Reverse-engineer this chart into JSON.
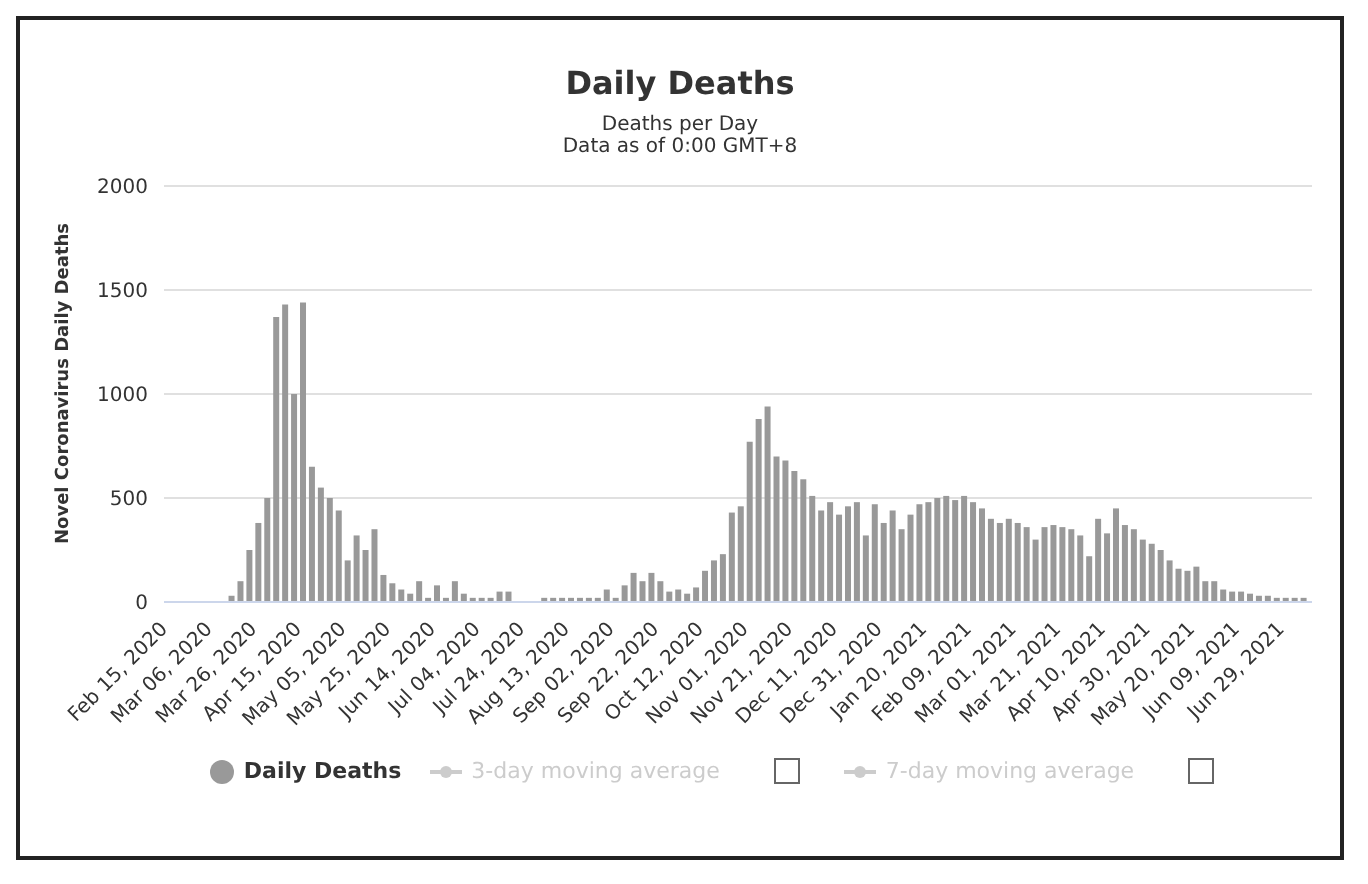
{
  "chart_data": {
    "type": "bar",
    "title": "Daily Deaths",
    "subtitle": "Deaths per Day",
    "annotations": [
      "Data as of 0:00 GMT+8"
    ],
    "ylabel": "Novel Coronavirus Daily Deaths",
    "x": [
      "2020-02-15",
      "2020-02-19",
      "2020-02-23",
      "2020-02-27",
      "2020-03-02",
      "2020-03-06",
      "2020-03-10",
      "2020-03-14",
      "2020-03-18",
      "2020-03-22",
      "2020-03-26",
      "2020-03-30",
      "2020-04-03",
      "2020-04-07",
      "2020-04-11",
      "2020-04-15",
      "2020-04-19",
      "2020-04-23",
      "2020-04-27",
      "2020-05-01",
      "2020-05-05",
      "2020-05-09",
      "2020-05-13",
      "2020-05-17",
      "2020-05-21",
      "2020-05-25",
      "2020-05-29",
      "2020-06-02",
      "2020-06-06",
      "2020-06-10",
      "2020-06-14",
      "2020-06-18",
      "2020-06-22",
      "2020-06-26",
      "2020-06-30",
      "2020-07-04",
      "2020-07-08",
      "2020-07-12",
      "2020-07-16",
      "2020-07-20",
      "2020-07-24",
      "2020-07-28",
      "2020-08-01",
      "2020-08-05",
      "2020-08-09",
      "2020-08-13",
      "2020-08-17",
      "2020-08-21",
      "2020-08-25",
      "2020-08-29",
      "2020-09-02",
      "2020-09-06",
      "2020-09-10",
      "2020-09-14",
      "2020-09-18",
      "2020-09-22",
      "2020-09-26",
      "2020-09-30",
      "2020-10-04",
      "2020-10-08",
      "2020-10-12",
      "2020-10-16",
      "2020-10-20",
      "2020-10-24",
      "2020-10-28",
      "2020-11-01",
      "2020-11-05",
      "2020-11-09",
      "2020-11-13",
      "2020-11-17",
      "2020-11-21",
      "2020-11-25",
      "2020-11-29",
      "2020-12-03",
      "2020-12-07",
      "2020-12-11",
      "2020-12-15",
      "2020-12-19",
      "2020-12-23",
      "2020-12-27",
      "2020-12-31",
      "2021-01-04",
      "2021-01-08",
      "2021-01-12",
      "2021-01-16",
      "2021-01-20",
      "2021-01-24",
      "2021-01-28",
      "2021-02-01",
      "2021-02-05",
      "2021-02-09",
      "2021-02-13",
      "2021-02-17",
      "2021-02-21",
      "2021-02-25",
      "2021-03-01",
      "2021-03-05",
      "2021-03-09",
      "2021-03-13",
      "2021-03-17",
      "2021-03-21",
      "2021-03-25",
      "2021-03-29",
      "2021-04-02",
      "2021-04-06",
      "2021-04-10",
      "2021-04-14",
      "2021-04-18",
      "2021-04-22",
      "2021-04-26",
      "2021-04-30",
      "2021-05-04",
      "2021-05-08",
      "2021-05-12",
      "2021-05-16",
      "2021-05-20",
      "2021-05-24",
      "2021-05-28",
      "2021-06-01",
      "2021-06-05",
      "2021-06-09",
      "2021-06-13",
      "2021-06-17",
      "2021-06-21",
      "2021-06-25",
      "2021-06-29",
      "2021-07-03",
      "2021-07-07"
    ],
    "series": [
      {
        "name": "Daily Deaths",
        "color": "#999999",
        "values": [
          0,
          0,
          0,
          0,
          0,
          0,
          0,
          30,
          100,
          250,
          380,
          500,
          1370,
          1430,
          1000,
          1440,
          650,
          550,
          500,
          440,
          200,
          320,
          250,
          350,
          130,
          90,
          60,
          40,
          100,
          20,
          80,
          20,
          100,
          40,
          20,
          20,
          20,
          50,
          50,
          0,
          0,
          0,
          20,
          20,
          20,
          20,
          20,
          20,
          20,
          60,
          20,
          80,
          140,
          100,
          140,
          100,
          50,
          60,
          40,
          70,
          150,
          200,
          230,
          430,
          460,
          770,
          880,
          940,
          700,
          680,
          630,
          590,
          510,
          440,
          480,
          420,
          460,
          480,
          320,
          470,
          380,
          440,
          350,
          420,
          470,
          480,
          500,
          510,
          490,
          510,
          480,
          450,
          400,
          380,
          400,
          380,
          360,
          300,
          360,
          370,
          360,
          350,
          320,
          220,
          400,
          330,
          450,
          370,
          350,
          300,
          280,
          250,
          200,
          160,
          150,
          170,
          100,
          100,
          60,
          50,
          50,
          40,
          30,
          30,
          20,
          20,
          20,
          20
        ]
      },
      {
        "name": "3-day moving average",
        "type": "line",
        "color": "#cccccc",
        "values": [
          null,
          null,
          null,
          null,
          null,
          null,
          null,
          null,
          null,
          null,
          null,
          null,
          null,
          null,
          null,
          null,
          null,
          null,
          null,
          null,
          null,
          null,
          null,
          null,
          null,
          null,
          null,
          null,
          null,
          null,
          null,
          null,
          null,
          null,
          null,
          null,
          null,
          null,
          null,
          null,
          null,
          null,
          null,
          null,
          null,
          null,
          null,
          null,
          null,
          null,
          null,
          null,
          null,
          null,
          null,
          null,
          null,
          null,
          null,
          null,
          null,
          null,
          null,
          null,
          null,
          null,
          null,
          null,
          null,
          null,
          null,
          null,
          null,
          null,
          null,
          null,
          null,
          null,
          null,
          null,
          null,
          null,
          null,
          null,
          null,
          null,
          null,
          null,
          null,
          null,
          null,
          null,
          null,
          null,
          null,
          null,
          null,
          null,
          null,
          null,
          null,
          null,
          null,
          null,
          null,
          null,
          null,
          null,
          null,
          null,
          null,
          null,
          null,
          null,
          null,
          null,
          null,
          null,
          null,
          null,
          null,
          null,
          null,
          null,
          null,
          null,
          null,
          null
        ]
      },
      {
        "name": "7-day moving average",
        "type": "line",
        "color": "#cccccc",
        "values": [
          null,
          null,
          null,
          null,
          null,
          null,
          null,
          null,
          null,
          null,
          null,
          null,
          null,
          null,
          null,
          null,
          null,
          null,
          null,
          null,
          null,
          null,
          null,
          null,
          null,
          null,
          null,
          null,
          null,
          null,
          null,
          null,
          null,
          null,
          null,
          null,
          null,
          null,
          null,
          null,
          null,
          null,
          null,
          null,
          null,
          null,
          null,
          null,
          null,
          null,
          null,
          null,
          null,
          null,
          null,
          null,
          null,
          null,
          null,
          null,
          null,
          null,
          null,
          null,
          null,
          null,
          null,
          null,
          null,
          null,
          null,
          null,
          null,
          null,
          null,
          null,
          null,
          null,
          null,
          null,
          null,
          null,
          null,
          null,
          null,
          null,
          null,
          null,
          null,
          null,
          null,
          null,
          null,
          null,
          null,
          null,
          null,
          null,
          null,
          null,
          null,
          null,
          null,
          null,
          null,
          null,
          null,
          null,
          null,
          null,
          null,
          null,
          null,
          null,
          null,
          null,
          null,
          null,
          null,
          null,
          null,
          null,
          null,
          null,
          null,
          null,
          null,
          null
        ]
      }
    ],
    "xlim": [
      "2020-02-13",
      "2021-07-11"
    ],
    "xticks": [
      {
        "value": "2020-02-15",
        "label": "Feb 15, 2020"
      },
      {
        "value": "2020-03-06",
        "label": "Mar 06, 2020"
      },
      {
        "value": "2020-03-26",
        "label": "Mar 26, 2020"
      },
      {
        "value": "2020-04-15",
        "label": "Apr 15, 2020"
      },
      {
        "value": "2020-05-05",
        "label": "May 05, 2020"
      },
      {
        "value": "2020-05-25",
        "label": "May 25, 2020"
      },
      {
        "value": "2020-06-14",
        "label": "Jun 14, 2020"
      },
      {
        "value": "2020-07-04",
        "label": "Jul 04, 2020"
      },
      {
        "value": "2020-07-24",
        "label": "Jul 24, 2020"
      },
      {
        "value": "2020-08-13",
        "label": "Aug 13, 2020"
      },
      {
        "value": "2020-09-02",
        "label": "Sep 02, 2020"
      },
      {
        "value": "2020-09-22",
        "label": "Sep 22, 2020"
      },
      {
        "value": "2020-10-12",
        "label": "Oct 12, 2020"
      },
      {
        "value": "2020-11-01",
        "label": "Nov 01, 2020"
      },
      {
        "value": "2020-11-21",
        "label": "Nov 21, 2020"
      },
      {
        "value": "2020-12-11",
        "label": "Dec 11, 2020"
      },
      {
        "value": "2020-12-31",
        "label": "Dec 31, 2020"
      },
      {
        "value": "2021-01-20",
        "label": "Jan 20, 2021"
      },
      {
        "value": "2021-02-09",
        "label": "Feb 09, 2021"
      },
      {
        "value": "2021-03-01",
        "label": "Mar 01, 2021"
      },
      {
        "value": "2021-03-21",
        "label": "Mar 21, 2021"
      },
      {
        "value": "2021-04-10",
        "label": "Apr 10, 2021"
      },
      {
        "value": "2021-04-30",
        "label": "Apr 30, 2021"
      },
      {
        "value": "2021-05-20",
        "label": "May 20, 2021"
      },
      {
        "value": "2021-06-09",
        "label": "Jun 09, 2021"
      },
      {
        "value": "2021-06-29",
        "label": "Jun 29, 2021"
      }
    ],
    "ylim": [
      0,
      2000
    ],
    "yticks": [
      0,
      500,
      1000,
      1500,
      2000
    ],
    "grid": "y",
    "legend": "bottom"
  }
}
